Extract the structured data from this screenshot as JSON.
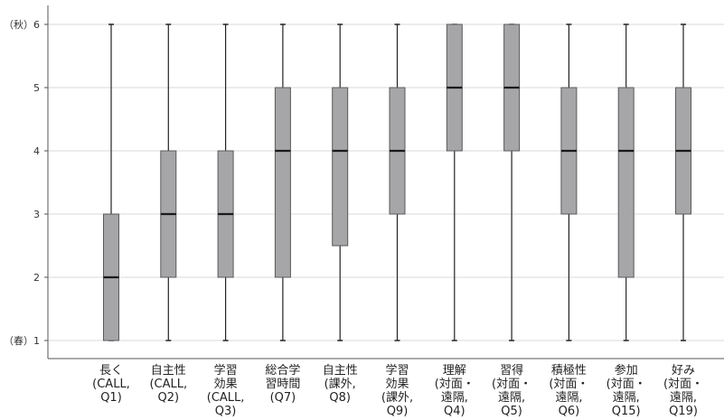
{
  "chart_data": {
    "type": "boxplot",
    "title": "",
    "xlabel": "",
    "ylabel": "",
    "ylim": [
      1,
      6
    ],
    "yticks": [
      {
        "value": 1,
        "label": "（春）1"
      },
      {
        "value": 2,
        "label": "2"
      },
      {
        "value": 3,
        "label": "3"
      },
      {
        "value": 4,
        "label": "4"
      },
      {
        "value": 5,
        "label": "5"
      },
      {
        "value": 6,
        "label": "（秋）6"
      }
    ],
    "grid": true,
    "box_color": "#a6a6a9",
    "box_stroke": "#5a5a5a",
    "grid_color": "#d9d9d9",
    "categories": [
      {
        "label_lines": [
          "長く",
          "(CALL,",
          "Q1)"
        ],
        "min": 1,
        "q1": 1,
        "median": 2,
        "q3": 3,
        "max": 6
      },
      {
        "label_lines": [
          "自主性",
          "(CALL,",
          "Q2)"
        ],
        "min": 1,
        "q1": 2,
        "median": 3,
        "q3": 4,
        "max": 6
      },
      {
        "label_lines": [
          "学習",
          "効果",
          "(CALL,",
          "Q3)"
        ],
        "min": 1,
        "q1": 2,
        "median": 3,
        "q3": 4,
        "max": 6
      },
      {
        "label_lines": [
          "総合学",
          "習時間",
          "(Q7)"
        ],
        "min": 1,
        "q1": 2,
        "median": 4,
        "q3": 5,
        "max": 6
      },
      {
        "label_lines": [
          "自主性",
          "(課外,",
          "Q8)"
        ],
        "min": 1,
        "q1": 2.5,
        "median": 4,
        "q3": 5,
        "max": 6
      },
      {
        "label_lines": [
          "学習",
          "効果",
          "(課外,",
          "Q9)"
        ],
        "min": 1,
        "q1": 3,
        "median": 4,
        "q3": 5,
        "max": 6
      },
      {
        "label_lines": [
          "理解",
          "(対面・",
          "遠隔,",
          "Q4)"
        ],
        "min": 1,
        "q1": 4,
        "median": 5,
        "q3": 6,
        "max": 6
      },
      {
        "label_lines": [
          "習得",
          "(対面・",
          "遠隔,",
          "Q5)"
        ],
        "min": 1,
        "q1": 4,
        "median": 5,
        "q3": 6,
        "max": 6
      },
      {
        "label_lines": [
          "積極性",
          "(対面・",
          "遠隔,",
          "Q6)"
        ],
        "min": 1,
        "q1": 3,
        "median": 4,
        "q3": 5,
        "max": 6
      },
      {
        "label_lines": [
          "参加",
          "(対面・",
          "遠隔,",
          "Q15)"
        ],
        "min": 1,
        "q1": 2,
        "median": 4,
        "q3": 5,
        "max": 6
      },
      {
        "label_lines": [
          "好み",
          "(対面・",
          "遠隔,",
          "Q19)"
        ],
        "min": 1,
        "q1": 3,
        "median": 4,
        "q3": 5,
        "max": 6
      }
    ]
  }
}
